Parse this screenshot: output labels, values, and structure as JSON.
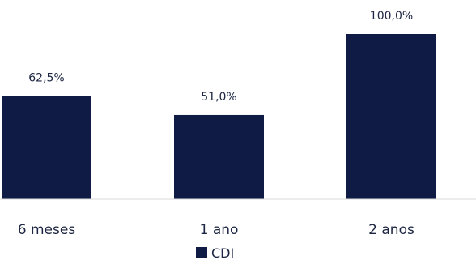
{
  "chart_data": {
    "type": "bar",
    "categories": [
      "6 meses",
      "1 ano",
      "2 anos"
    ],
    "series": [
      {
        "name": "CDI",
        "values": [
          62.5,
          51.0,
          100.0
        ],
        "labels": [
          "62,5%",
          "51,0%",
          "100,0%"
        ],
        "color": "#0f1b44"
      }
    ],
    "ylim": [
      0,
      110
    ],
    "grid": false,
    "legend": "bottom-center",
    "axis_color": "#d9d9d9",
    "text_color": "#1c2541"
  }
}
